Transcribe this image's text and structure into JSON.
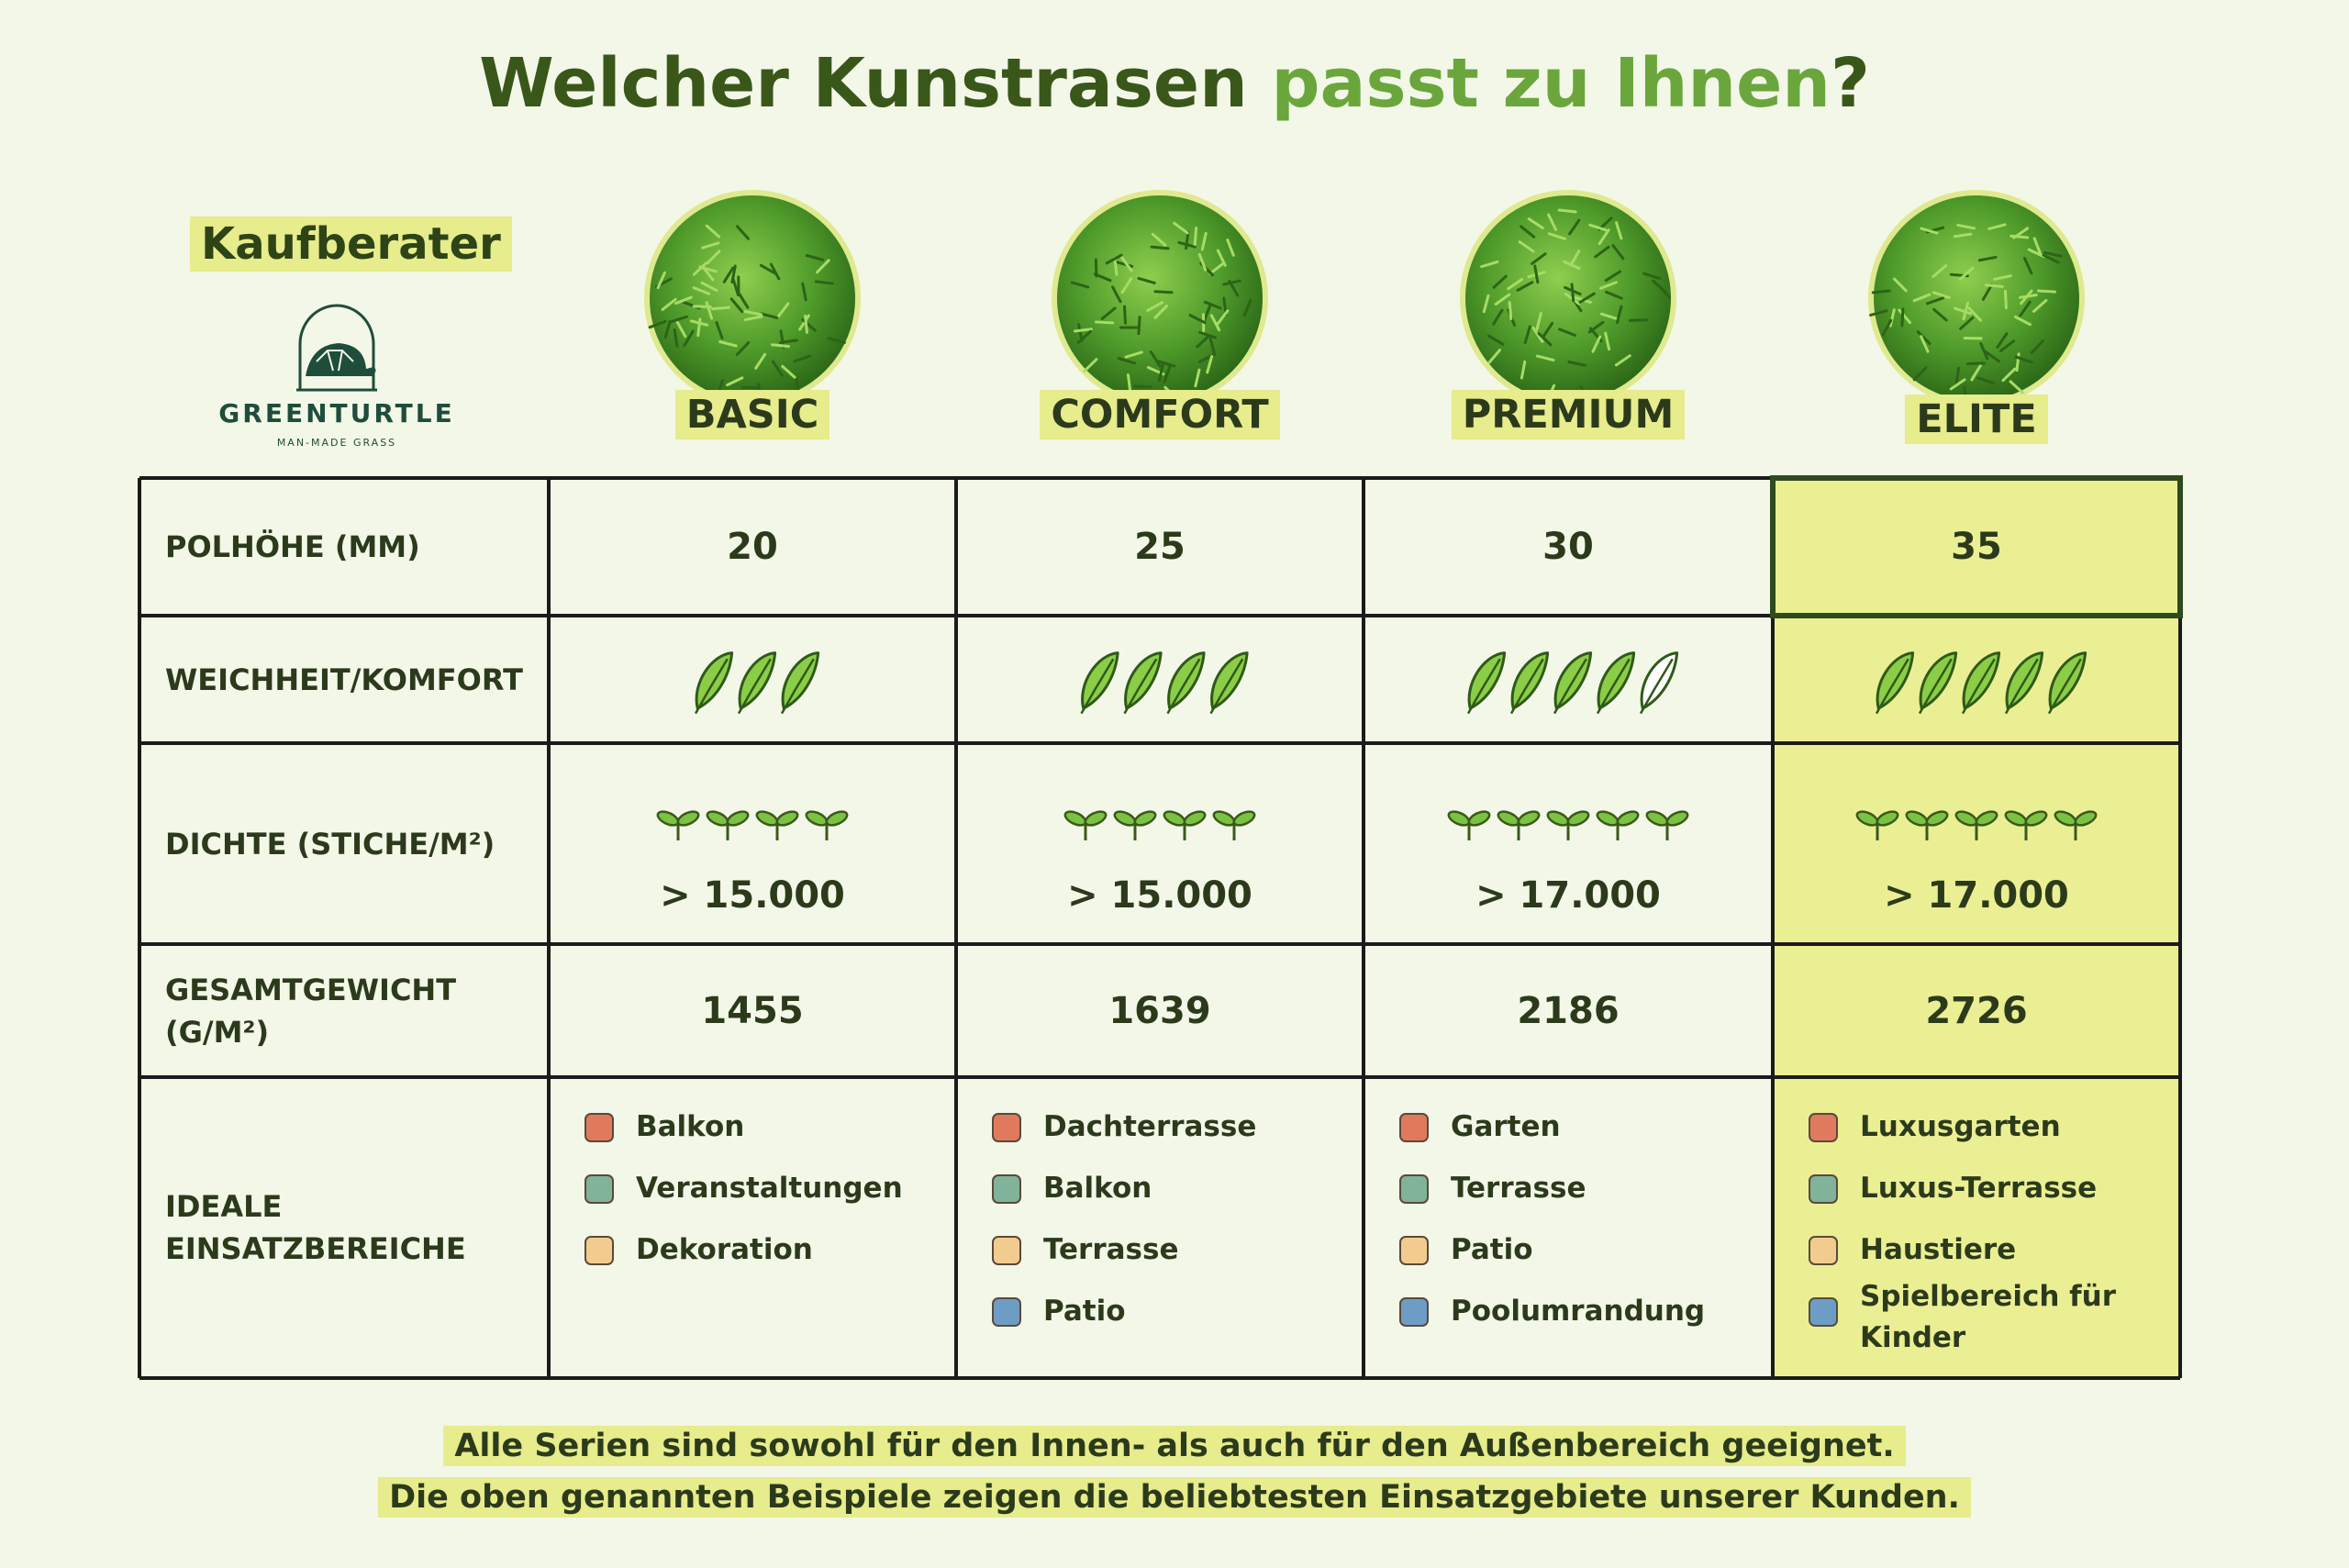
{
  "title": {
    "lead": "Welcher Kunstrasen",
    "accent": "passt zu Ihnen",
    "end": "?"
  },
  "advisor": "Kaufberater",
  "brand": {
    "name": "GREENTURTLE",
    "tagline": "MAN-MADE GRASS"
  },
  "products": [
    "BASIC",
    "COMFORT",
    "PREMIUM",
    "ELITE"
  ],
  "highlight_column": 3,
  "table": {
    "rows": [
      {
        "label": "POLHÖHE (MM)",
        "values": [
          20,
          25,
          30,
          35
        ]
      },
      {
        "label": "WEICHHEIT/KOMFORT",
        "ratings": [
          {
            "filled": 3,
            "outline": 0
          },
          {
            "filled": 4,
            "outline": 0
          },
          {
            "filled": 4,
            "outline": 1
          },
          {
            "filled": 5,
            "outline": 0
          }
        ]
      },
      {
        "label": "DICHTE (STICHE/M²)",
        "sprouts": [
          4,
          4,
          5,
          5
        ],
        "values": [
          "> 15.000",
          "> 15.000",
          "> 17.000",
          "> 17.000"
        ]
      },
      {
        "label": "GESAMTGEWICHT (G/M²)",
        "values": [
          1455,
          1639,
          2186,
          2726
        ]
      },
      {
        "label": "IDEALE EINSATZBEREICHE",
        "values": [
          [
            "Balkon",
            "Veranstaltungen",
            "Dekoration"
          ],
          [
            "Dachterrasse",
            "Balkon",
            "Terrasse",
            "Patio"
          ],
          [
            "Garten",
            "Terrasse",
            "Patio",
            "Poolumrandung"
          ],
          [
            "Luxusgarten",
            "Luxus-Terrasse",
            "Haustiere",
            "Spielbereich für Kinder"
          ]
        ]
      }
    ]
  },
  "footer": [
    "Alle Serien sind sowohl für den Innen- als auch für den Außenbereich geeignet.",
    "Die oben genannten Beispiele zeigen die beliebtesten Einsatzgebiete unserer Kunden."
  ]
}
